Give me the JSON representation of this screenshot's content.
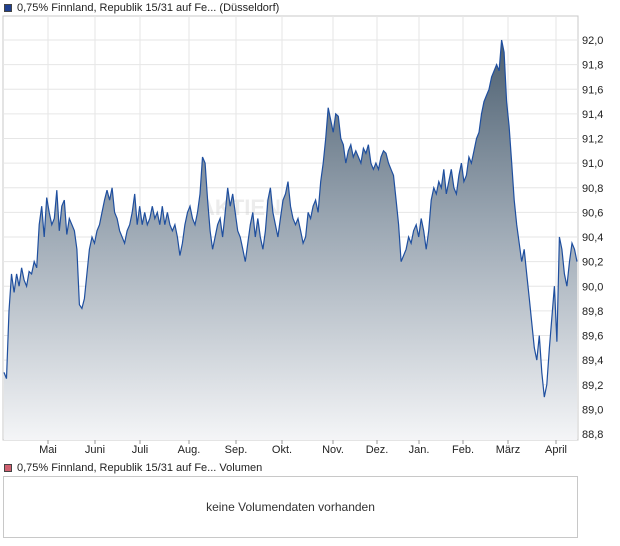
{
  "price_legend": {
    "label": "0,75% Finnland, Republik 15/31 auf Fe... (Düsseldorf)",
    "color": "#1f3f8f"
  },
  "volume_legend": {
    "label": "0,75% Finnland, Republik 15/31 auf Fe... Volumen",
    "color": "#d06070"
  },
  "volume_message": "keine Volumendaten vorhanden",
  "watermark": "AKTIEN",
  "chart_data": {
    "type": "area",
    "title": "",
    "xlabel": "",
    "ylabel": "",
    "x_ticks": [
      "Mai",
      "Juni",
      "Juli",
      "Aug.",
      "Sep.",
      "Okt.",
      "Nov.",
      "Dez.",
      "Jan.",
      "Feb.",
      "März",
      "April"
    ],
    "y_ticks": [
      "92,0",
      "91,8",
      "91,6",
      "91,4",
      "91,2",
      "91,0",
      "90,8",
      "90,6",
      "90,4",
      "90,2",
      "90,0",
      "89,8",
      "89,6",
      "89,4",
      "89,2",
      "89,0",
      "88,8"
    ],
    "ylim": [
      88.8,
      92.0
    ],
    "grid": true,
    "series": [
      {
        "color": "#1f4f9f",
        "values": [
          89.3,
          89.25,
          89.8,
          90.1,
          89.95,
          90.1,
          90.0,
          90.15,
          90.05,
          90.0,
          90.12,
          90.1,
          90.2,
          90.15,
          90.5,
          90.65,
          90.4,
          90.72,
          90.6,
          90.5,
          90.55,
          90.78,
          90.45,
          90.65,
          90.7,
          90.42,
          90.55,
          90.5,
          90.45,
          90.3,
          89.85,
          89.82,
          89.9,
          90.1,
          90.3,
          90.4,
          90.35,
          90.45,
          90.5,
          90.6,
          90.7,
          90.78,
          90.7,
          90.8,
          90.6,
          90.55,
          90.45,
          90.4,
          90.35,
          90.45,
          90.5,
          90.6,
          90.75,
          90.5,
          90.65,
          90.5,
          90.6,
          90.5,
          90.55,
          90.65,
          90.55,
          90.6,
          90.5,
          90.65,
          90.5,
          90.6,
          90.5,
          90.45,
          90.5,
          90.4,
          90.25,
          90.35,
          90.5,
          90.6,
          90.65,
          90.55,
          90.5,
          90.6,
          90.75,
          91.05,
          91.0,
          90.7,
          90.45,
          90.3,
          90.4,
          90.5,
          90.55,
          90.4,
          90.6,
          90.8,
          90.65,
          90.75,
          90.6,
          90.45,
          90.4,
          90.3,
          90.2,
          90.35,
          90.5,
          90.6,
          90.4,
          90.55,
          90.4,
          90.3,
          90.45,
          90.7,
          90.8,
          90.6,
          90.5,
          90.4,
          90.55,
          90.7,
          90.75,
          90.85,
          90.65,
          90.55,
          90.5,
          90.55,
          90.45,
          90.35,
          90.4,
          90.6,
          90.55,
          90.65,
          90.7,
          90.6,
          90.85,
          91.0,
          91.2,
          91.45,
          91.35,
          91.25,
          91.4,
          91.38,
          91.2,
          91.15,
          91.0,
          91.1,
          91.15,
          91.05,
          91.1,
          91.05,
          91.0,
          91.12,
          91.08,
          91.15,
          91.0,
          90.95,
          91.0,
          90.95,
          91.05,
          91.1,
          91.08,
          91.0,
          90.95,
          90.9,
          90.7,
          90.5,
          90.2,
          90.25,
          90.3,
          90.4,
          90.35,
          90.45,
          90.5,
          90.4,
          90.55,
          90.45,
          90.3,
          90.45,
          90.7,
          90.8,
          90.75,
          90.85,
          90.8,
          90.95,
          90.75,
          90.85,
          90.95,
          90.8,
          90.75,
          90.9,
          91.0,
          90.85,
          90.9,
          91.05,
          91.0,
          91.1,
          91.2,
          91.25,
          91.4,
          91.5,
          91.55,
          91.6,
          91.7,
          91.75,
          91.8,
          91.75,
          92.0,
          91.9,
          91.5,
          91.3,
          91.0,
          90.7,
          90.5,
          90.35,
          90.2,
          90.3,
          90.1,
          89.9,
          89.7,
          89.5,
          89.4,
          89.6,
          89.3,
          89.1,
          89.2,
          89.5,
          89.75,
          90.0,
          89.55,
          90.4,
          90.3,
          90.1,
          90.0,
          90.2,
          90.35,
          90.3,
          90.2
        ]
      }
    ]
  }
}
